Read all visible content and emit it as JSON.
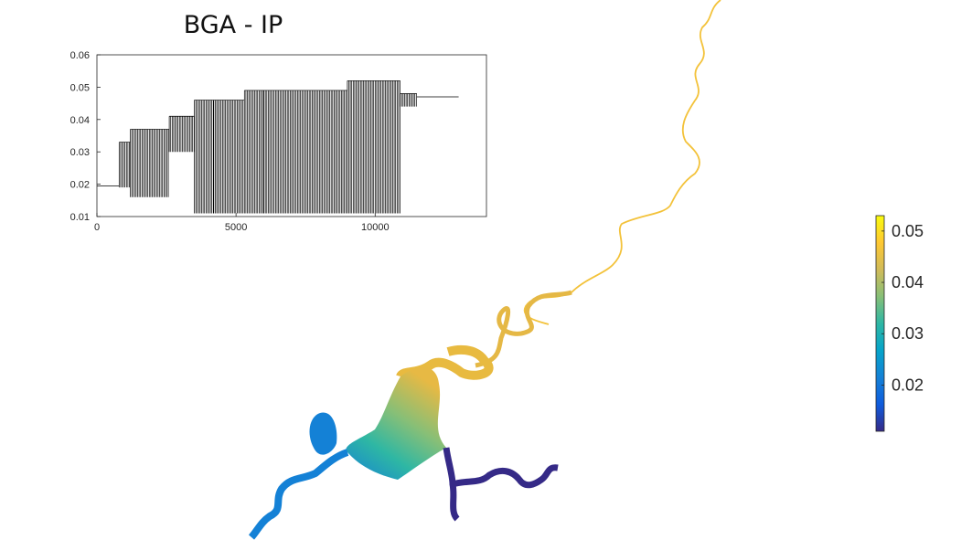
{
  "chart_data": [
    {
      "type": "line",
      "title": "BGA - IP",
      "xlabel": "",
      "ylabel": "",
      "xlim": [
        0,
        14000
      ],
      "ylim": [
        0.01,
        0.06
      ],
      "x_ticks": [
        "0",
        "5000",
        "10000"
      ],
      "y_ticks": [
        "0.01",
        "0.02",
        "0.03",
        "0.04",
        "0.05",
        "0.06"
      ],
      "grid": false,
      "series": [
        {
          "color": "#000000",
          "segments": [
            {
              "x_start": 0,
              "x_end": 800,
              "upper": 0.0195,
              "lower": 0.0195
            },
            {
              "x_start": 800,
              "x_end": 1200,
              "upper": 0.033,
              "lower": 0.019
            },
            {
              "x_start": 1200,
              "x_end": 2600,
              "upper": 0.037,
              "lower": 0.016
            },
            {
              "x_start": 2600,
              "x_end": 3500,
              "upper": 0.041,
              "lower": 0.03
            },
            {
              "x_start": 3500,
              "x_end": 4200,
              "upper": 0.046,
              "lower": 0.011
            },
            {
              "x_start": 4200,
              "x_end": 5300,
              "upper": 0.046,
              "lower": 0.011
            },
            {
              "x_start": 5300,
              "x_end": 6000,
              "upper": 0.049,
              "lower": 0.011
            },
            {
              "x_start": 6000,
              "x_end": 9000,
              "upper": 0.049,
              "lower": 0.011
            },
            {
              "x_start": 9000,
              "x_end": 10900,
              "upper": 0.052,
              "lower": 0.011
            },
            {
              "x_start": 10900,
              "x_end": 11500,
              "upper": 0.048,
              "lower": 0.044
            },
            {
              "x_start": 11500,
              "x_end": 13000,
              "upper": 0.047,
              "lower": 0.047
            }
          ]
        }
      ]
    },
    {
      "type": "heatmap",
      "colormap": "parula",
      "colorbar_range": [
        0.011,
        0.053
      ],
      "colorbar_ticks": [
        "0.02",
        "0.03",
        "0.04",
        "0.05"
      ],
      "colors": [
        "#352a87",
        "#0f5cdd",
        "#1481d6",
        "#06a4ca",
        "#2eb7a4",
        "#87bf77",
        "#d1bb59",
        "#fec832",
        "#f9fb0e"
      ]
    }
  ]
}
